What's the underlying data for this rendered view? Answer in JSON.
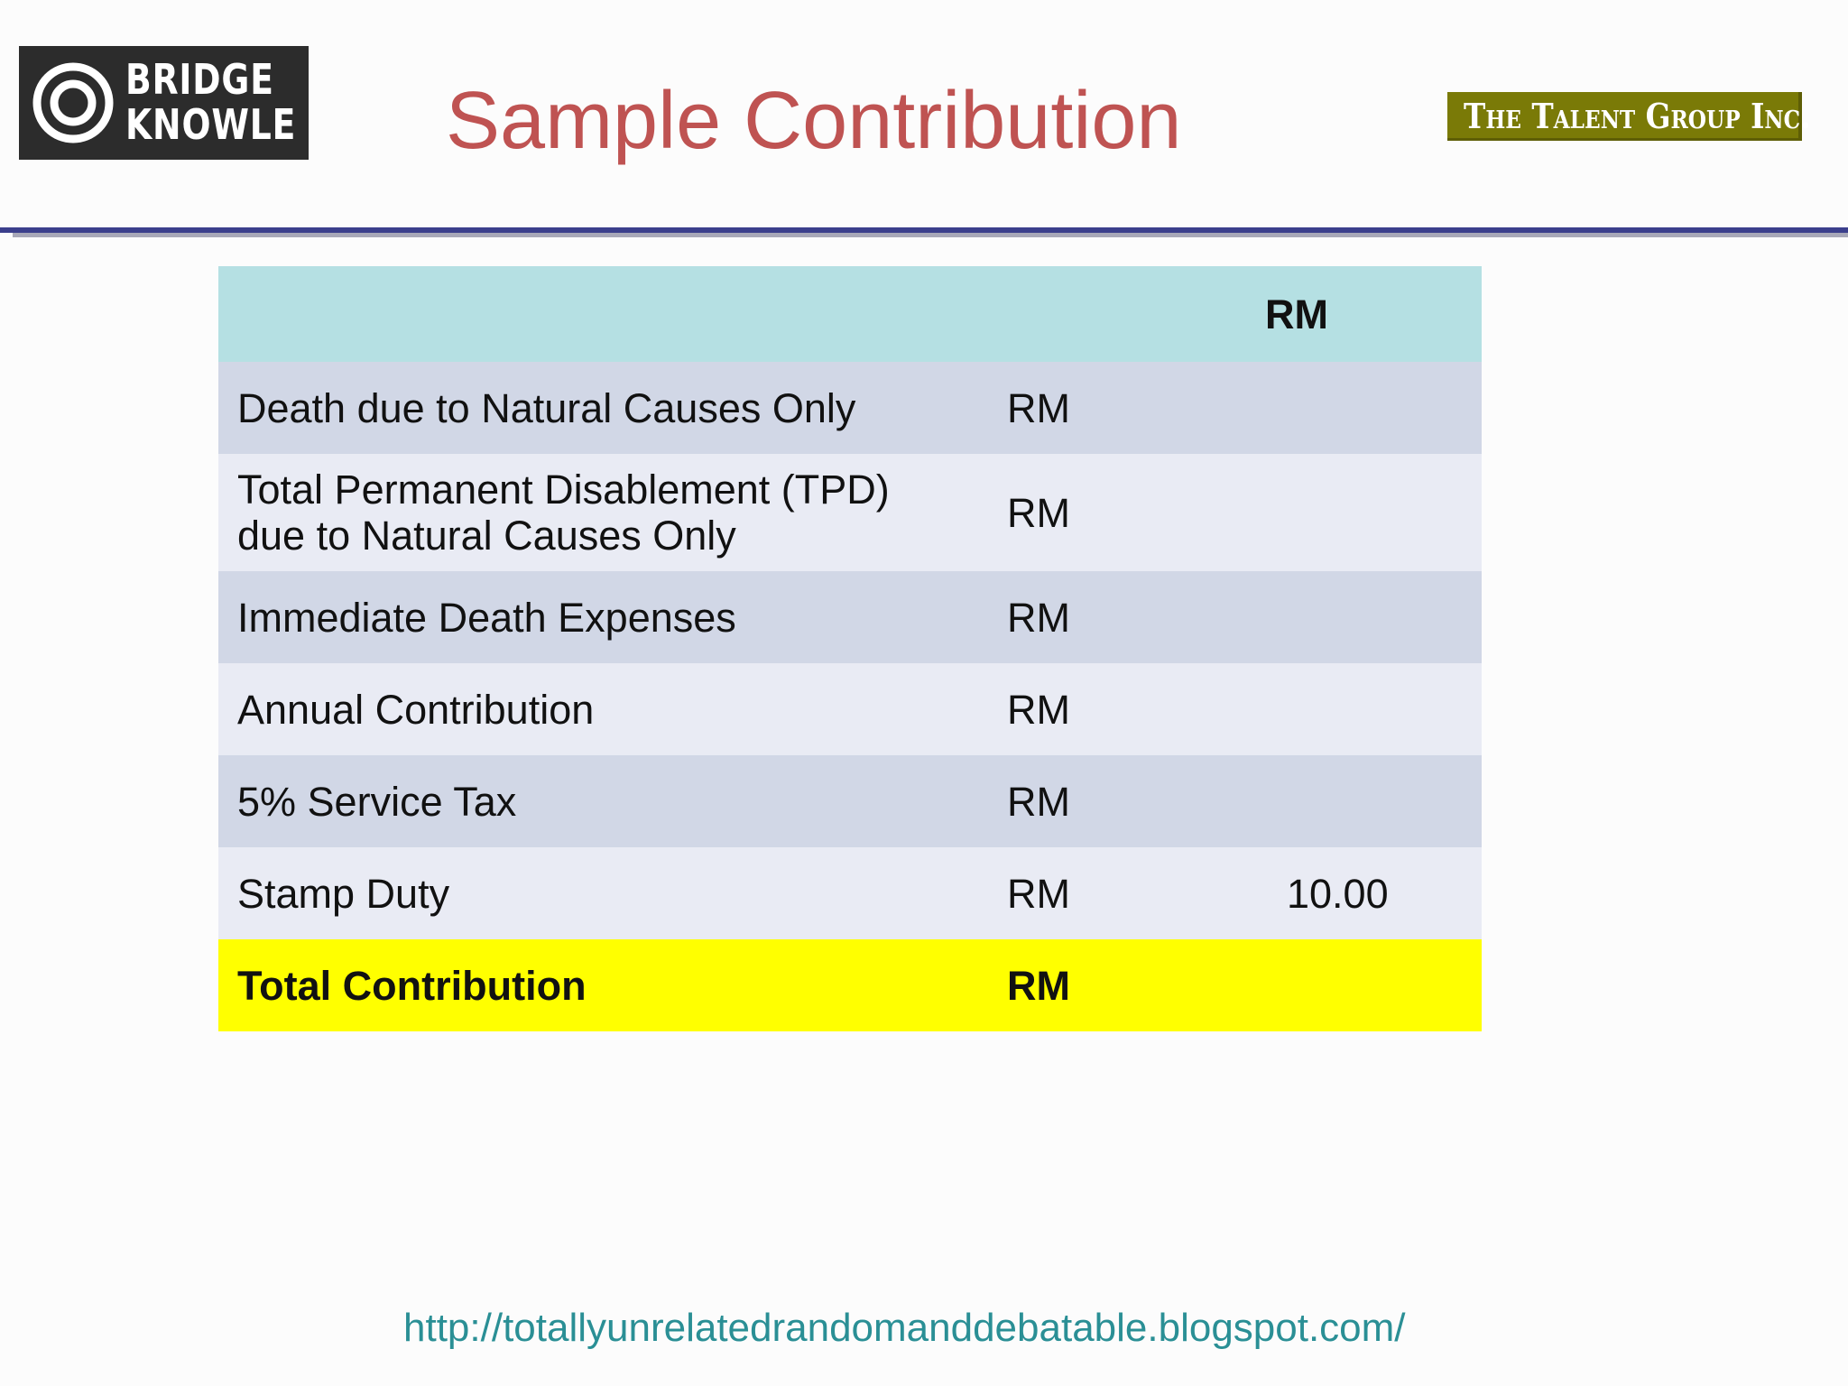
{
  "logos": {
    "left_line1": "BRIDGE",
    "left_line2": "KNOWLE",
    "right_text": "The Talent Group Inc."
  },
  "slide": {
    "title": "Sample Contribution"
  },
  "table": {
    "header": [
      "",
      "",
      "RM"
    ],
    "rows": [
      {
        "label": "Death due to Natural Causes Only",
        "currency": "RM",
        "value": ""
      },
      {
        "label_line1": "Total Permanent Disablement (TPD)",
        "label_line2": "due to Natural Causes Only",
        "currency": "RM",
        "value": ""
      },
      {
        "label": "Immediate Death Expenses",
        "currency": "RM",
        "value": ""
      },
      {
        "label": "Annual Contribution",
        "currency": "RM",
        "value": ""
      },
      {
        "label": "5% Service Tax",
        "currency": "RM",
        "value": ""
      },
      {
        "label": "Stamp Duty",
        "currency": "RM",
        "value": "10.00"
      },
      {
        "label": "Total Contribution",
        "currency": "RM",
        "value": ""
      }
    ]
  },
  "footer": {
    "url": "http://totallyunrelatedrandomanddebatable.blogspot.com/"
  },
  "colors": {
    "title": "#bf5352",
    "header_row": "#b5e0e3",
    "row_dark": "#d1d7e6",
    "row_light": "#e9ebf4",
    "total_row": "#ffff00",
    "rule": "#3b3f8c",
    "footer_link": "#2a8f95",
    "right_logo_bg": "#7a7a07"
  }
}
